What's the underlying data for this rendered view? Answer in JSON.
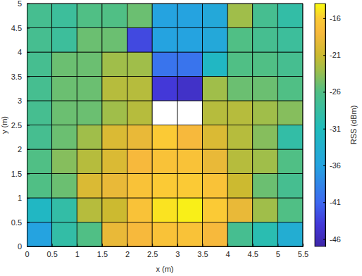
{
  "chart_data": {
    "type": "heatmap",
    "x_label": "x (m)",
    "y_label": "y (m)",
    "xlim": [
      0,
      5.5
    ],
    "ylim": [
      0,
      5
    ],
    "xticks": [
      0,
      0.5,
      1,
      1.5,
      2,
      2.5,
      3,
      3.5,
      4,
      4.5,
      5,
      5.5
    ],
    "yticks": [
      0,
      0.5,
      1,
      1.5,
      2,
      2.5,
      3,
      3.5,
      4,
      4.5,
      5
    ],
    "x_edges": [
      0,
      0.5,
      1,
      1.5,
      2,
      2.5,
      3,
      3.5,
      4,
      4.5,
      5,
      5.5
    ],
    "y_edges": [
      0,
      0.5,
      1,
      1.5,
      2,
      2.5,
      3,
      3.5,
      4,
      4.5,
      5
    ],
    "z": [
      [
        -36,
        -29,
        -26,
        -19,
        -18,
        -17,
        -17,
        -18,
        -27,
        -30,
        -34
      ],
      [
        -32,
        -29,
        -22,
        -21,
        -17,
        -15,
        -14.5,
        -16,
        -19,
        -23,
        -26
      ],
      [
        -26,
        -25,
        -20,
        -19,
        -17,
        -16,
        -16,
        -17,
        -21,
        -25,
        -27
      ],
      [
        -26,
        -24,
        -22,
        -20,
        -18,
        -17,
        -17,
        -19,
        -22,
        -23,
        -26
      ],
      [
        -27,
        -25,
        -23,
        -20,
        -19,
        -16,
        -18,
        -20,
        -22,
        -24,
        -29
      ],
      [
        -27,
        -25,
        -25,
        -23,
        -22,
        null,
        null,
        -22,
        -22,
        -23,
        -24
      ],
      [
        -27,
        -25,
        -25,
        -22,
        -22,
        -44,
        -45,
        -23,
        -25,
        -25,
        -26
      ],
      [
        -27,
        -25,
        -25,
        -23,
        -23,
        -40,
        -40,
        -32,
        -26,
        -26,
        -27
      ],
      [
        -27,
        -28,
        -25,
        -25,
        -43,
        -36,
        -36,
        -35,
        -26,
        -27,
        -28
      ],
      [
        -27,
        -28,
        -26,
        -26,
        -25,
        -36,
        -36,
        -35,
        -23,
        -27,
        -29
      ]
    ],
    "colorbar": {
      "label": "RSS (dBm)",
      "range": [
        -47,
        -14
      ],
      "ticks": [
        -46,
        -41,
        -36,
        -31,
        -26,
        -21,
        -16
      ]
    }
  }
}
